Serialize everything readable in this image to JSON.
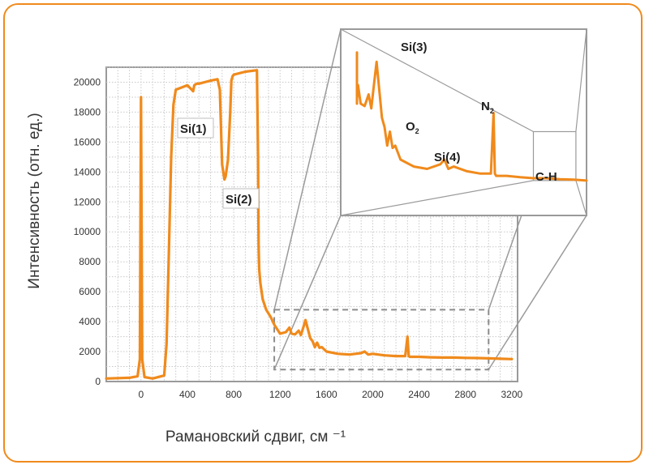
{
  "chart_data": {
    "type": "line",
    "title": "",
    "xlabel": "Рамановский сдвиг, см ⁻¹",
    "ylabel": "Интенсивность (отн. ед.)",
    "xlim": [
      -300,
      3250
    ],
    "ylim": [
      0,
      21000
    ],
    "xticks": [
      0,
      400,
      800,
      1200,
      1600,
      2000,
      2400,
      2800,
      3200
    ],
    "yticks": [
      0,
      2000,
      4000,
      6000,
      8000,
      10000,
      12000,
      14000,
      16000,
      18000,
      20000
    ],
    "grid": true,
    "line_color": "#f08a1c",
    "series": [
      {
        "x": [
          -300,
          -100,
          -30,
          -10,
          0,
          10,
          30,
          100,
          200,
          220,
          240,
          260,
          280,
          300,
          400,
          450,
          460,
          480,
          500,
          600,
          660,
          680,
          690,
          700,
          720,
          730,
          750,
          770,
          780,
          790,
          800,
          900,
          1000,
          1010,
          1015,
          1020,
          1030,
          1050,
          1080,
          1120,
          1150,
          1200,
          1250,
          1280,
          1300,
          1330,
          1360,
          1380,
          1400,
          1420,
          1440,
          1460,
          1480,
          1500,
          1520,
          1540,
          1560,
          1600,
          1700,
          1800,
          1900,
          1930,
          1960,
          2000,
          2100,
          2200,
          2280,
          2300,
          2310,
          2320,
          2340,
          2400,
          2500,
          2600,
          2700,
          2800,
          2900,
          3000,
          3100,
          3200
        ],
        "y": [
          200,
          250,
          350,
          1500,
          19000,
          1500,
          300,
          200,
          400,
          2500,
          8500,
          15000,
          18500,
          19500,
          19800,
          19400,
          19800,
          19900,
          19900,
          20100,
          20200,
          19500,
          17000,
          14500,
          13500,
          13700,
          14800,
          18000,
          20100,
          20400,
          20500,
          20700,
          20800,
          15000,
          9000,
          7500,
          6600,
          5500,
          4800,
          4300,
          3800,
          3200,
          3300,
          3600,
          3200,
          3150,
          3400,
          3100,
          3600,
          4100,
          3500,
          2900,
          2700,
          2300,
          2600,
          2250,
          2300,
          2000,
          1850,
          1800,
          1900,
          2000,
          1800,
          1850,
          1750,
          1700,
          1700,
          3000,
          1700,
          1650,
          1650,
          1650,
          1620,
          1600,
          1600,
          1580,
          1570,
          1550,
          1520,
          1500
        ]
      }
    ],
    "inset": {
      "zoom_box_x": [
        1150,
        3000
      ],
      "zoom_box_y": [
        800,
        4800
      ],
      "source_box_x": [
        2600,
        2920
      ],
      "source_box_y": [
        1550,
        2600
      ],
      "labels": [
        "Si(3)",
        "O",
        "Si(4)",
        "N",
        "C-H"
      ],
      "subscripts": [
        "2",
        "2"
      ]
    },
    "annotations": [
      "Si(1)",
      "Si(2)"
    ]
  }
}
